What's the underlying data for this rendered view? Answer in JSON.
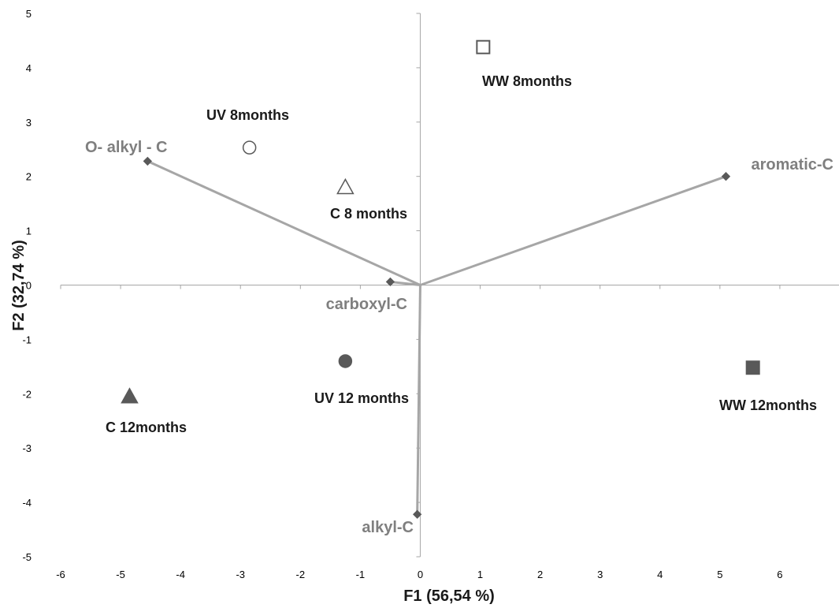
{
  "chart_data": {
    "type": "scatter",
    "subtype": "pca-biplot",
    "xlabel": "F1 (56,54 %)",
    "ylabel": "F2 (32,74 %)",
    "xlim": [
      -6,
      7
    ],
    "ylim": [
      -5,
      5
    ],
    "xticks": [
      -6,
      -5,
      -4,
      -3,
      -2,
      -1,
      0,
      1,
      2,
      3,
      4,
      5,
      6
    ],
    "yticks": [
      -5,
      -4,
      -3,
      -2,
      -1,
      0,
      1,
      2,
      3,
      4,
      5
    ],
    "grid": false,
    "observations": [
      {
        "label": "WW 8months",
        "x": 1.05,
        "y": 4.38,
        "marker": "square",
        "filled": false
      },
      {
        "label": "UV 8months",
        "x": -2.85,
        "y": 2.53,
        "marker": "circle",
        "filled": false
      },
      {
        "label": "C 8 months",
        "x": -1.25,
        "y": 1.8,
        "marker": "triangle",
        "filled": false
      },
      {
        "label": "UV 12 months",
        "x": -1.25,
        "y": -1.4,
        "marker": "circle",
        "filled": true
      },
      {
        "label": "C 12months",
        "x": -4.85,
        "y": -2.05,
        "marker": "triangle",
        "filled": true
      },
      {
        "label": "WW 12months",
        "x": 5.55,
        "y": -1.52,
        "marker": "square",
        "filled": true
      }
    ],
    "variables": [
      {
        "label": "O- alkyl - C",
        "x": -4.55,
        "y": 2.28
      },
      {
        "label": "aromatic-C",
        "x": 5.1,
        "y": 2.0
      },
      {
        "label": "carboxyl-C",
        "x": -0.5,
        "y": 0.06
      },
      {
        "label": "alkyl-C",
        "x": -0.05,
        "y": -4.22
      }
    ],
    "colors": {
      "observation": "#595959",
      "variable_line": "#a6a6a6",
      "variable_label": "#7f7f7f",
      "axis": "#a6a6a6"
    }
  }
}
